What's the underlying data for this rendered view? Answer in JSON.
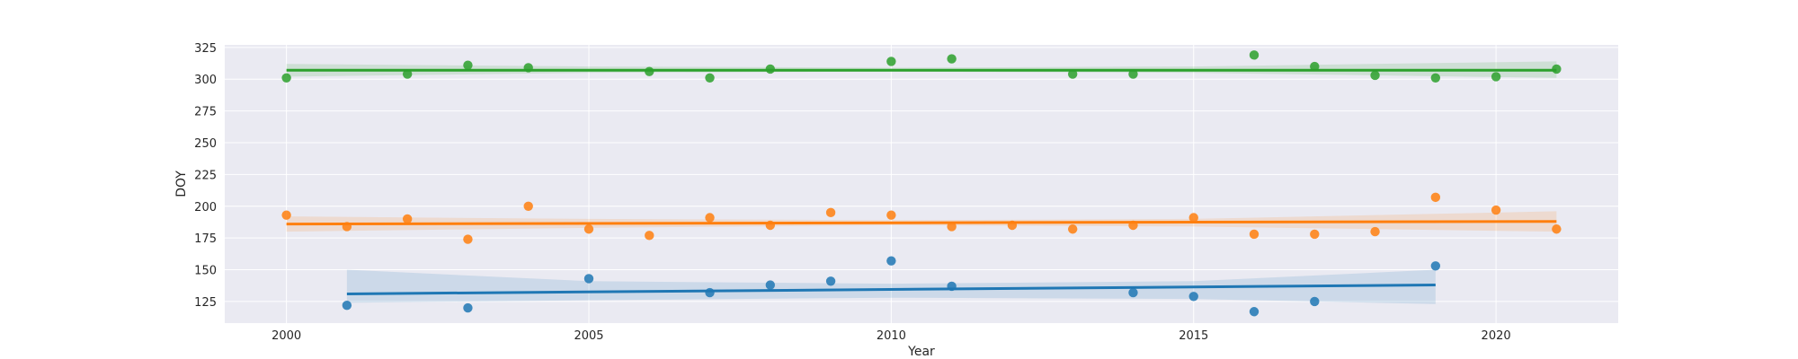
{
  "chart_data": {
    "type": "scatter",
    "title": "",
    "xlabel": "Year",
    "ylabel": "DOY",
    "xlim": [
      1998.98,
      2022.02
    ],
    "ylim": [
      108,
      327
    ],
    "xticks": [
      2000,
      2005,
      2010,
      2015,
      2020
    ],
    "yticks": [
      125,
      150,
      175,
      200,
      225,
      250,
      275,
      300,
      325
    ],
    "grid": true,
    "background": "#eaeaf2",
    "series": [
      {
        "color": "#1f77b4",
        "points": [
          [
            2001,
            122
          ],
          [
            2003,
            120
          ],
          [
            2005,
            143
          ],
          [
            2007,
            132
          ],
          [
            2008,
            138
          ],
          [
            2009,
            141
          ],
          [
            2010,
            157
          ],
          [
            2011,
            137
          ],
          [
            2014,
            132
          ],
          [
            2015,
            129
          ],
          [
            2016,
            117
          ],
          [
            2017,
            125
          ],
          [
            2019,
            153
          ]
        ],
        "trend": [
          [
            2001,
            131
          ],
          [
            2019,
            138
          ]
        ],
        "ci_band": [
          [
            2001,
            150,
            124
          ],
          [
            2005,
            141,
            126
          ],
          [
            2010,
            139,
            128
          ],
          [
            2015,
            141,
            127
          ],
          [
            2019,
            150,
            123
          ]
        ]
      },
      {
        "color": "#ff7f0e",
        "points": [
          [
            2000,
            193
          ],
          [
            2001,
            184
          ],
          [
            2002,
            190
          ],
          [
            2003,
            174
          ],
          [
            2004,
            200
          ],
          [
            2005,
            182
          ],
          [
            2006,
            177
          ],
          [
            2007,
            191
          ],
          [
            2008,
            185
          ],
          [
            2009,
            195
          ],
          [
            2010,
            193
          ],
          [
            2011,
            184
          ],
          [
            2012,
            185
          ],
          [
            2013,
            182
          ],
          [
            2014,
            185
          ],
          [
            2015,
            191
          ],
          [
            2016,
            178
          ],
          [
            2017,
            178
          ],
          [
            2018,
            180
          ],
          [
            2019,
            207
          ],
          [
            2020,
            197
          ],
          [
            2021,
            182
          ]
        ],
        "trend": [
          [
            2000,
            186
          ],
          [
            2021,
            188
          ]
        ],
        "ci_band": [
          [
            2000,
            192,
            180
          ],
          [
            2005,
            190,
            183
          ],
          [
            2010,
            189,
            185
          ],
          [
            2015,
            190,
            184
          ],
          [
            2021,
            196,
            180
          ]
        ]
      },
      {
        "color": "#2ca02c",
        "points": [
          [
            2000,
            301
          ],
          [
            2002,
            304
          ],
          [
            2003,
            311
          ],
          [
            2004,
            309
          ],
          [
            2006,
            306
          ],
          [
            2007,
            301
          ],
          [
            2008,
            308
          ],
          [
            2010,
            314
          ],
          [
            2011,
            316
          ],
          [
            2013,
            304
          ],
          [
            2014,
            304
          ],
          [
            2016,
            319
          ],
          [
            2017,
            310
          ],
          [
            2018,
            303
          ],
          [
            2019,
            301
          ],
          [
            2020,
            302
          ],
          [
            2021,
            308
          ]
        ],
        "trend": [
          [
            2000,
            307
          ],
          [
            2021,
            307
          ]
        ],
        "ci_band": [
          [
            2000,
            312,
            302
          ],
          [
            2005,
            310,
            305
          ],
          [
            2010,
            309,
            306
          ],
          [
            2015,
            310,
            305
          ],
          [
            2021,
            314,
            301
          ]
        ]
      }
    ]
  }
}
